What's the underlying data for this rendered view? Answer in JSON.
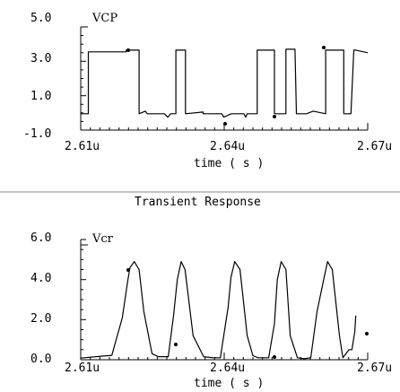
{
  "chart_data": [
    {
      "type": "line",
      "signal_label": "VCP",
      "xlabel": "time ( s )",
      "x_tick_labels": [
        "2.61u",
        "2.64u",
        "2.67u"
      ],
      "y_tick_labels": [
        "5.0",
        "3.0",
        "1.0",
        "-1.0"
      ],
      "xlim": [
        2.61,
        2.67
      ],
      "ylim": [
        -1.0,
        5.0
      ],
      "series": [
        {
          "x": [
            2.61,
            2.6116,
            2.6116,
            2.6195,
            2.6195,
            2.6222,
            2.6222,
            2.6235,
            2.6239,
            2.625,
            2.6275,
            2.6282,
            2.6288,
            2.6299,
            2.6299,
            2.6319,
            2.6319,
            2.6356,
            2.6356,
            2.6395,
            2.6399,
            2.6415,
            2.6441,
            2.6445,
            2.6448,
            2.6469,
            2.6469,
            2.6505,
            2.6505,
            2.6529,
            2.6529,
            2.6548,
            2.6551,
            2.6572,
            2.6586,
            2.6612,
            2.6612,
            2.665,
            2.665,
            2.6665,
            2.6671,
            2.6675,
            2.67
          ],
          "y": [
            -0.05,
            -0.05,
            3.55,
            3.55,
            3.65,
            3.65,
            -0.05,
            0.1,
            -0.05,
            -0.05,
            -0.05,
            -0.25,
            -0.05,
            -0.05,
            3.65,
            3.65,
            -0.05,
            0.05,
            -0.05,
            -0.05,
            -0.25,
            -0.05,
            -0.05,
            -0.25,
            -0.05,
            -0.05,
            3.65,
            3.65,
            -0.05,
            -0.05,
            3.7,
            3.7,
            -0.05,
            -0.05,
            0.1,
            -0.05,
            3.65,
            3.65,
            -0.05,
            -0.05,
            3.65,
            3.65,
            3.5
          ]
        }
      ]
    },
    {
      "type": "line",
      "signal_label": "Vcr",
      "xlabel": "time ( s )",
      "x_tick_labels": [
        "2.61u",
        "2.64u",
        "2.67u"
      ],
      "y_tick_labels": [
        "6.0",
        "4.0",
        "2.0",
        "0.0"
      ],
      "xlim": [
        2.61,
        2.67
      ],
      "ylim": [
        0.0,
        6.0
      ],
      "series": [
        {
          "x": [
            2.61,
            2.6145,
            2.6165,
            2.6187,
            2.6198,
            2.6203,
            2.6212,
            2.6222,
            2.6232,
            2.6249,
            2.6262,
            2.6283,
            2.6294,
            2.6302,
            2.631,
            2.6318,
            2.6335,
            2.6357,
            2.6376,
            2.6392,
            2.6408,
            2.6414,
            2.6422,
            2.6433,
            2.6448,
            2.646,
            2.6471,
            2.6493,
            2.6505,
            2.6511,
            2.6519,
            2.6529,
            2.6538,
            2.6553,
            2.6567,
            2.6581,
            2.6594,
            2.6608,
            2.6616,
            2.6626,
            2.6641,
            2.6648,
            2.6661,
            2.6667,
            2.6673,
            2.6675
          ],
          "y": [
            0.08,
            0.18,
            0.22,
            2.1,
            3.9,
            4.6,
            4.9,
            4.5,
            2.4,
            0.3,
            0.15,
            0.15,
            2.2,
            4.0,
            4.9,
            4.5,
            1.2,
            0.15,
            0.1,
            0.1,
            2.6,
            4.1,
            4.9,
            4.5,
            1.2,
            0.2,
            0.1,
            0.1,
            1.8,
            4.0,
            4.9,
            4.5,
            1.2,
            0.1,
            0.05,
            0.1,
            2.4,
            4.0,
            4.9,
            4.5,
            1.2,
            0.1,
            0.5,
            0.5,
            1.4,
            2.2
          ]
        }
      ]
    }
  ],
  "section_title": "Transient Response"
}
